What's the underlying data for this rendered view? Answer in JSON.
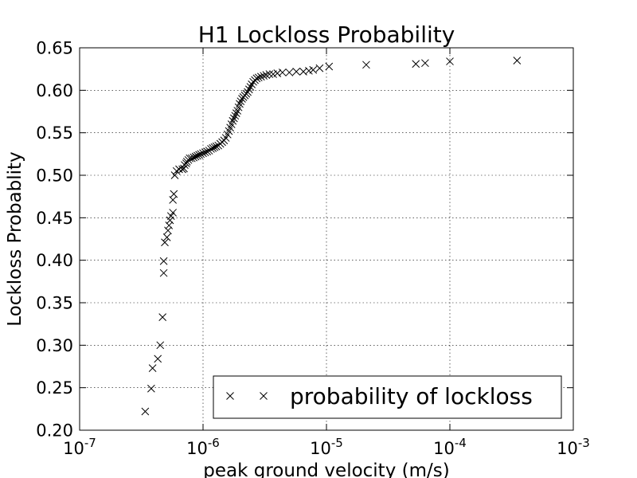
{
  "chart_data": {
    "type": "scatter",
    "title": "H1 Lockloss Probability",
    "xlabel": "peak ground velocity (m/s)",
    "ylabel": "Lockloss Probablity",
    "x_scale": "log",
    "xlim": [
      1e-07,
      0.001
    ],
    "ylim": [
      0.2,
      0.65
    ],
    "grid": true,
    "legend_position": "lower-right",
    "x_ticks": [
      {
        "value": 1e-07,
        "base": "10",
        "exp": "-7"
      },
      {
        "value": 1e-06,
        "base": "10",
        "exp": "-6"
      },
      {
        "value": 1e-05,
        "base": "10",
        "exp": "-5"
      },
      {
        "value": 0.0001,
        "base": "10",
        "exp": "-4"
      },
      {
        "value": 0.001,
        "base": "10",
        "exp": "-3"
      }
    ],
    "y_ticks": [
      {
        "value": 0.2,
        "label": "0.20"
      },
      {
        "value": 0.25,
        "label": "0.25"
      },
      {
        "value": 0.3,
        "label": "0.30"
      },
      {
        "value": 0.35,
        "label": "0.35"
      },
      {
        "value": 0.4,
        "label": "0.40"
      },
      {
        "value": 0.45,
        "label": "0.45"
      },
      {
        "value": 0.5,
        "label": "0.50"
      },
      {
        "value": 0.55,
        "label": "0.55"
      },
      {
        "value": 0.6,
        "label": "0.60"
      },
      {
        "value": 0.65,
        "label": "0.65"
      }
    ],
    "series": [
      {
        "name": "probability of lockloss",
        "marker": "x",
        "color": "#000000",
        "points": [
          [
            3.4e-07,
            0.222
          ],
          [
            3.8e-07,
            0.249
          ],
          [
            3.9e-07,
            0.273
          ],
          [
            4.3e-07,
            0.284
          ],
          [
            4.5e-07,
            0.3
          ],
          [
            4.7e-07,
            0.333
          ],
          [
            4.8e-07,
            0.385
          ],
          [
            4.8e-07,
            0.399
          ],
          [
            4.9e-07,
            0.421
          ],
          [
            5.1e-07,
            0.427
          ],
          [
            5.2e-07,
            0.435
          ],
          [
            5.3e-07,
            0.441
          ],
          [
            5.4e-07,
            0.447
          ],
          [
            5.5e-07,
            0.452
          ],
          [
            5.7e-07,
            0.456
          ],
          [
            5.7e-07,
            0.471
          ],
          [
            5.8e-07,
            0.478
          ],
          [
            5.9e-07,
            0.5
          ],
          [
            6.1e-07,
            0.505
          ],
          [
            6.4e-07,
            0.507
          ],
          [
            6.8e-07,
            0.507
          ],
          [
            7e-07,
            0.508
          ],
          [
            7.1e-07,
            0.512
          ],
          [
            7.3e-07,
            0.514
          ],
          [
            7.4e-07,
            0.516
          ],
          [
            7.6e-07,
            0.518
          ],
          [
            7.8e-07,
            0.52
          ],
          [
            8.1e-07,
            0.52
          ],
          [
            8.4e-07,
            0.521
          ],
          [
            8.7e-07,
            0.522
          ],
          [
            9e-07,
            0.523
          ],
          [
            9.3e-07,
            0.524
          ],
          [
            9.6e-07,
            0.525
          ],
          [
            1e-06,
            0.526
          ],
          [
            1.04e-06,
            0.527
          ],
          [
            1.08e-06,
            0.528
          ],
          [
            1.12e-06,
            0.529
          ],
          [
            1.16e-06,
            0.531
          ],
          [
            1.2e-06,
            0.532
          ],
          [
            1.24e-06,
            0.533
          ],
          [
            1.28e-06,
            0.534
          ],
          [
            1.33e-06,
            0.535
          ],
          [
            1.38e-06,
            0.537
          ],
          [
            1.43e-06,
            0.539
          ],
          [
            1.48e-06,
            0.541
          ],
          [
            1.53e-06,
            0.544
          ],
          [
            1.58e-06,
            0.548
          ],
          [
            1.62e-06,
            0.552
          ],
          [
            1.66e-06,
            0.556
          ],
          [
            1.7e-06,
            0.56
          ],
          [
            1.74e-06,
            0.564
          ],
          [
            1.78e-06,
            0.567
          ],
          [
            1.82e-06,
            0.57
          ],
          [
            1.86e-06,
            0.573
          ],
          [
            1.9e-06,
            0.576
          ],
          [
            1.94e-06,
            0.58
          ],
          [
            1.98e-06,
            0.584
          ],
          [
            2.02e-06,
            0.587
          ],
          [
            2.07e-06,
            0.59
          ],
          [
            2.12e-06,
            0.592
          ],
          [
            2.18e-06,
            0.594
          ],
          [
            2.24e-06,
            0.596
          ],
          [
            2.3e-06,
            0.598
          ],
          [
            2.36e-06,
            0.601
          ],
          [
            2.42e-06,
            0.604
          ],
          [
            2.48e-06,
            0.607
          ],
          [
            2.55e-06,
            0.61
          ],
          [
            2.63e-06,
            0.612
          ],
          [
            2.72e-06,
            0.614
          ],
          [
            2.82e-06,
            0.615
          ],
          [
            2.95e-06,
            0.616
          ],
          [
            3.1e-06,
            0.617
          ],
          [
            3.25e-06,
            0.618
          ],
          [
            3.45e-06,
            0.619
          ],
          [
            3.7e-06,
            0.619
          ],
          [
            4e-06,
            0.62
          ],
          [
            4.4e-06,
            0.621
          ],
          [
            5e-06,
            0.621
          ],
          [
            5.7e-06,
            0.622
          ],
          [
            6.5e-06,
            0.622
          ],
          [
            7.2e-06,
            0.623
          ],
          [
            7.8e-06,
            0.624
          ],
          [
            8.8e-06,
            0.626
          ],
          [
            1.05e-05,
            0.628
          ],
          [
            2.1e-05,
            0.63
          ],
          [
            5.3e-05,
            0.631
          ],
          [
            6.3e-05,
            0.632
          ],
          [
            0.0001,
            0.634
          ],
          [
            0.00035,
            0.635
          ]
        ]
      }
    ]
  }
}
